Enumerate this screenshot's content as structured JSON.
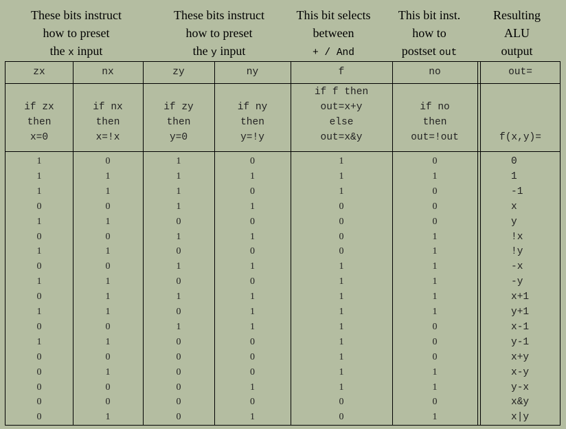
{
  "groups": [
    {
      "line1": "These bits instruct",
      "line2": "how to preset",
      "line3_pre": "the ",
      "line3_code": "x",
      "line3_post": " input"
    },
    {
      "line1": "These bits instruct",
      "line2": "how to preset",
      "line3_pre": "the ",
      "line3_code": "y",
      "line3_post": " input"
    },
    {
      "line1": "This bit selects",
      "line2": "between",
      "line3_code": "+ / And"
    },
    {
      "line1": "This bit inst.",
      "line2": "how to",
      "line3_pre": "postset ",
      "line3_code": "out"
    },
    {
      "line1": "Resulting",
      "line2": "ALU",
      "line3_pre": "output"
    }
  ],
  "headers": [
    "zx",
    "nx",
    "zy",
    "ny",
    "f",
    "no",
    "out="
  ],
  "descriptions": [
    [
      "if zx",
      "then",
      "x=0"
    ],
    [
      "if nx",
      "then",
      "x=!x"
    ],
    [
      "if zy",
      "then",
      "y=0"
    ],
    [
      "if ny",
      "then",
      "y=!y"
    ],
    [
      "if f then",
      "out=x+y",
      "else",
      "out=x&y"
    ],
    [
      "if no",
      "then",
      "out=!out"
    ],
    [
      "f(x,y)="
    ]
  ],
  "rows": [
    {
      "bits": [
        "1",
        "0",
        "1",
        "0",
        "1",
        "0"
      ],
      "out": "0"
    },
    {
      "bits": [
        "1",
        "1",
        "1",
        "1",
        "1",
        "1"
      ],
      "out": "1"
    },
    {
      "bits": [
        "1",
        "1",
        "1",
        "0",
        "1",
        "0"
      ],
      "out": "-1"
    },
    {
      "bits": [
        "0",
        "0",
        "1",
        "1",
        "0",
        "0"
      ],
      "out": "x"
    },
    {
      "bits": [
        "1",
        "1",
        "0",
        "0",
        "0",
        "0"
      ],
      "out": "y"
    },
    {
      "bits": [
        "0",
        "0",
        "1",
        "1",
        "0",
        "1"
      ],
      "out": "!x"
    },
    {
      "bits": [
        "1",
        "1",
        "0",
        "0",
        "0",
        "1"
      ],
      "out": "!y"
    },
    {
      "bits": [
        "0",
        "0",
        "1",
        "1",
        "1",
        "1"
      ],
      "out": "-x"
    },
    {
      "bits": [
        "1",
        "1",
        "0",
        "0",
        "1",
        "1"
      ],
      "out": "-y"
    },
    {
      "bits": [
        "0",
        "1",
        "1",
        "1",
        "1",
        "1"
      ],
      "out": "x+1"
    },
    {
      "bits": [
        "1",
        "1",
        "0",
        "1",
        "1",
        "1"
      ],
      "out": "y+1"
    },
    {
      "bits": [
        "0",
        "0",
        "1",
        "1",
        "1",
        "0"
      ],
      "out": "x-1"
    },
    {
      "bits": [
        "1",
        "1",
        "0",
        "0",
        "1",
        "0"
      ],
      "out": "y-1"
    },
    {
      "bits": [
        "0",
        "0",
        "0",
        "0",
        "1",
        "0"
      ],
      "out": "x+y"
    },
    {
      "bits": [
        "0",
        "1",
        "0",
        "0",
        "1",
        "1"
      ],
      "out": "x-y"
    },
    {
      "bits": [
        "0",
        "0",
        "0",
        "1",
        "1",
        "1"
      ],
      "out": "y-x"
    },
    {
      "bits": [
        "0",
        "0",
        "0",
        "0",
        "0",
        "0"
      ],
      "out": "x&y"
    },
    {
      "bits": [
        "0",
        "1",
        "0",
        "1",
        "0",
        "1"
      ],
      "out": "x|y"
    }
  ]
}
